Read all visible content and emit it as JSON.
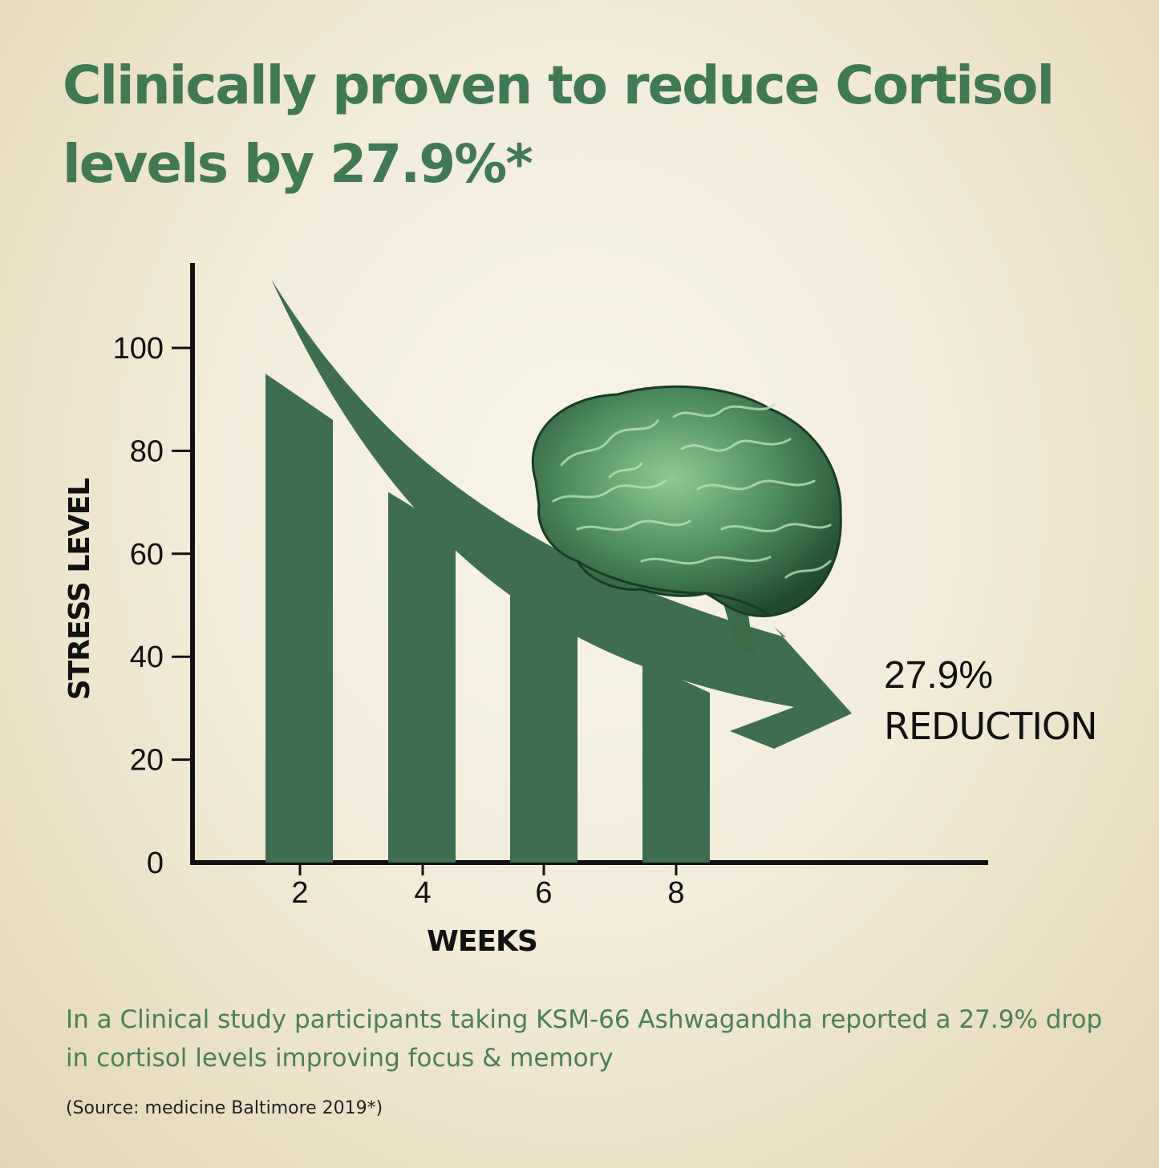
{
  "headline": "Clinically proven to reduce Cortisol levels by 27.9%*",
  "chart_data": {
    "type": "bar",
    "xlabel": "WEEKS",
    "ylabel": "STRESS LEVEL",
    "categories": [
      "2",
      "4",
      "6",
      "8"
    ],
    "values": [
      {
        "start": 95,
        "end": 86
      },
      {
        "start": 72,
        "end": 64
      },
      {
        "start": 52,
        "end": 44
      },
      {
        "start": 39,
        "end": 33
      }
    ],
    "y_ticks": [
      "0",
      "20",
      "40",
      "60",
      "80",
      "100"
    ],
    "ylim": [
      0,
      115
    ],
    "annotation": {
      "value": "27.9%",
      "label": "REDUCTION"
    },
    "colors": {
      "bar": "#3d6e50",
      "arrow": "#3d6e50",
      "brain": "#4d8a5c",
      "axis": "#111111"
    },
    "icons": [
      "brain-icon",
      "down-trend-arrow-icon"
    ]
  },
  "description": "In a Clinical study participants taking KSM-66 Ashwagandha reported a 27.9% drop in cortisol levels improving focus & memory",
  "source": "(Source: medicine Baltimore 2019*)"
}
